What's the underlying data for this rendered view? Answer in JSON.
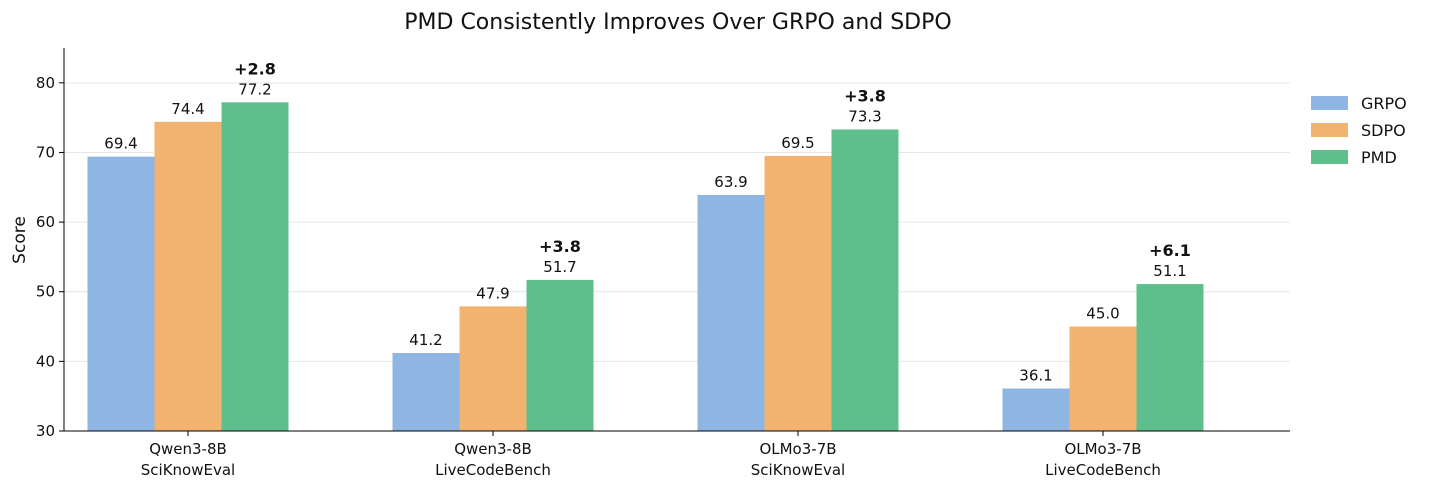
{
  "chart_data": {
    "type": "bar",
    "title": "PMD Consistently Improves Over GRPO and SDPO",
    "ylabel": "Score",
    "xlabel": "",
    "ylim": [
      30,
      85
    ],
    "yticks": [
      30,
      40,
      50,
      60,
      70,
      80
    ],
    "categories": [
      [
        "Qwen3-8B",
        "SciKnowEval"
      ],
      [
        "Qwen3-8B",
        "LiveCodeBench"
      ],
      [
        "OLMo3-7B",
        "SciKnowEval"
      ],
      [
        "OLMo3-7B",
        "LiveCodeBench"
      ]
    ],
    "series": [
      {
        "name": "GRPO",
        "color": "#8fb5e2",
        "values": [
          69.4,
          41.2,
          63.9,
          36.1
        ],
        "labels": [
          "69.4",
          "41.2",
          "63.9",
          "36.1"
        ]
      },
      {
        "name": "SDPO",
        "color": "#f1b36f",
        "values": [
          74.4,
          47.9,
          69.5,
          45.0
        ],
        "labels": [
          "74.4",
          "47.9",
          "69.5",
          "45.0"
        ]
      },
      {
        "name": "PMD",
        "color": "#5fbf8c",
        "values": [
          77.2,
          51.7,
          73.3,
          51.1
        ],
        "labels": [
          "77.2",
          "51.7",
          "73.3",
          "51.1"
        ]
      }
    ],
    "annotations": [
      "+2.8",
      "+3.8",
      "+3.8",
      "+6.1"
    ],
    "grid": "horizontal",
    "legend_position": "right"
  }
}
